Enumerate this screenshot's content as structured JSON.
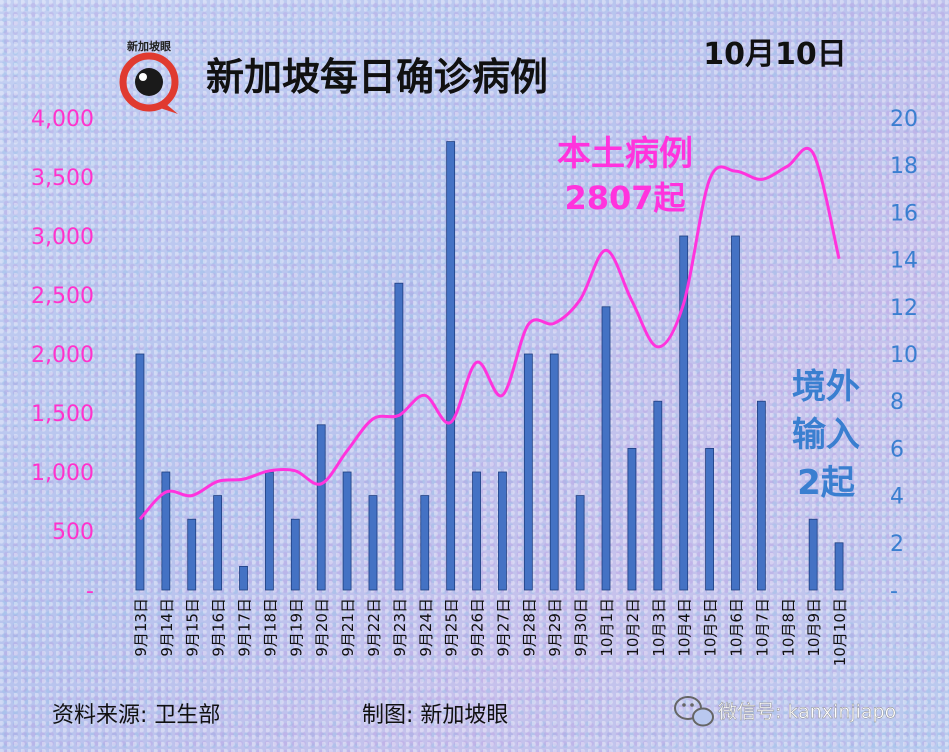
{
  "header": {
    "title": "新加坡每日确诊病例",
    "date": "10月10日",
    "logo_text": "新加坡眼"
  },
  "annotations": {
    "local_label": "本土病例",
    "local_value": "2807起",
    "import_line1": "境外",
    "import_line2": "输入",
    "import_line3": "2起"
  },
  "footer": {
    "source": "资料来源:  卫生部",
    "made_by": "制图:  新加坡眼",
    "wechat": "微信号: kanxinjiapo"
  },
  "colors": {
    "bar": "#4472c4",
    "line": "#ff33dd",
    "left_axis": "#ff33cc",
    "right_axis": "#3a7fd0",
    "logo_red": "#e03a2f"
  },
  "chart_data": {
    "type": "bar",
    "categories": [
      "9月13日",
      "9月14日",
      "9月15日",
      "9月16日",
      "9月17日",
      "9月18日",
      "9月19日",
      "9月20日",
      "9月21日",
      "9月22日",
      "9月23日",
      "9月24日",
      "9月25日",
      "9月26日",
      "9月27日",
      "9月28日",
      "9月29日",
      "9月30日",
      "10月1日",
      "10月2日",
      "10月3日",
      "10月4日",
      "10月5日",
      "10月6日",
      "10月7日",
      "10月8日",
      "10月9日",
      "10月10日"
    ],
    "series": [
      {
        "type": "line",
        "axis": "left",
        "values": [
          600,
          830,
          800,
          920,
          940,
          1010,
          1010,
          900,
          1180,
          1450,
          1480,
          1650,
          1420,
          1930,
          1650,
          2250,
          2260,
          2460,
          2880,
          2450,
          2060,
          2430,
          3480,
          3550,
          3480,
          3590,
          3700,
          2807
        ]
      },
      {
        "type": "bar",
        "axis": "right",
        "values": [
          10,
          5,
          3,
          4,
          1,
          5,
          3,
          7,
          5,
          4,
          13,
          4,
          19,
          5,
          5,
          10,
          10,
          4,
          12,
          6,
          8,
          15,
          6,
          15,
          8,
          0,
          3,
          2
        ]
      }
    ],
    "y_left": {
      "ylim": [
        0,
        4000
      ],
      "ticks": [
        "-",
        "500",
        "1,000",
        "1,500",
        "2,000",
        "2,500",
        "3,000",
        "3,500",
        "4,000"
      ]
    },
    "y_right": {
      "ylim": [
        0,
        20
      ],
      "ticks": [
        "-",
        "2",
        "4",
        "6",
        "8",
        "10",
        "12",
        "14",
        "16",
        "18",
        "20"
      ]
    },
    "grid": false,
    "legend": "none"
  }
}
